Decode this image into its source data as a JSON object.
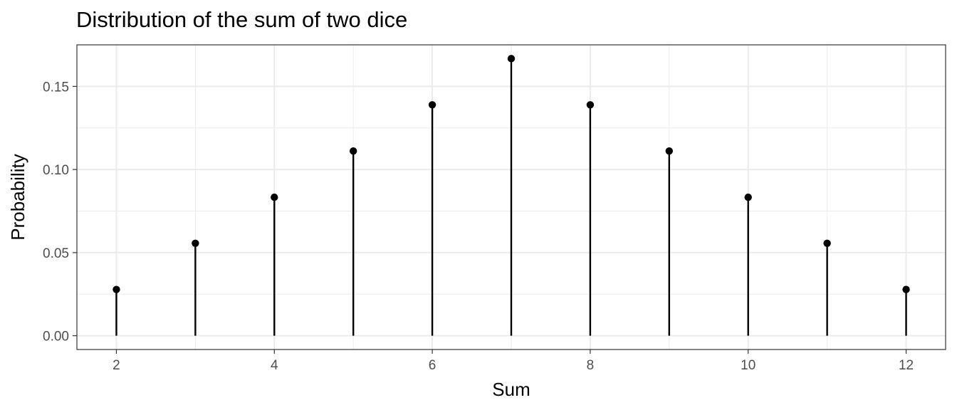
{
  "chart_data": {
    "type": "lollipop",
    "title": "Distribution of the sum of two dice",
    "xlabel": "Sum",
    "ylabel": "Probability",
    "x": [
      2,
      3,
      4,
      5,
      6,
      7,
      8,
      9,
      10,
      11,
      12
    ],
    "values": [
      0.0278,
      0.0556,
      0.0833,
      0.1111,
      0.1389,
      0.1667,
      0.1389,
      0.1111,
      0.0833,
      0.0556,
      0.0278
    ],
    "xlim": [
      1.5,
      12.5
    ],
    "ylim": [
      -0.0083,
      0.175
    ],
    "x_ticks": [
      2,
      4,
      6,
      8,
      10,
      12
    ],
    "x_tick_labels": [
      "2",
      "4",
      "6",
      "8",
      "10",
      "12"
    ],
    "y_ticks": [
      0,
      0.05,
      0.1,
      0.15
    ],
    "y_tick_labels": [
      "0.00",
      "0.05",
      "0.10",
      "0.15"
    ],
    "grid": true,
    "theme": "bw",
    "colors": {
      "marker": "#000000",
      "grid": "#ebebeb",
      "panel_border": "#333333"
    }
  }
}
